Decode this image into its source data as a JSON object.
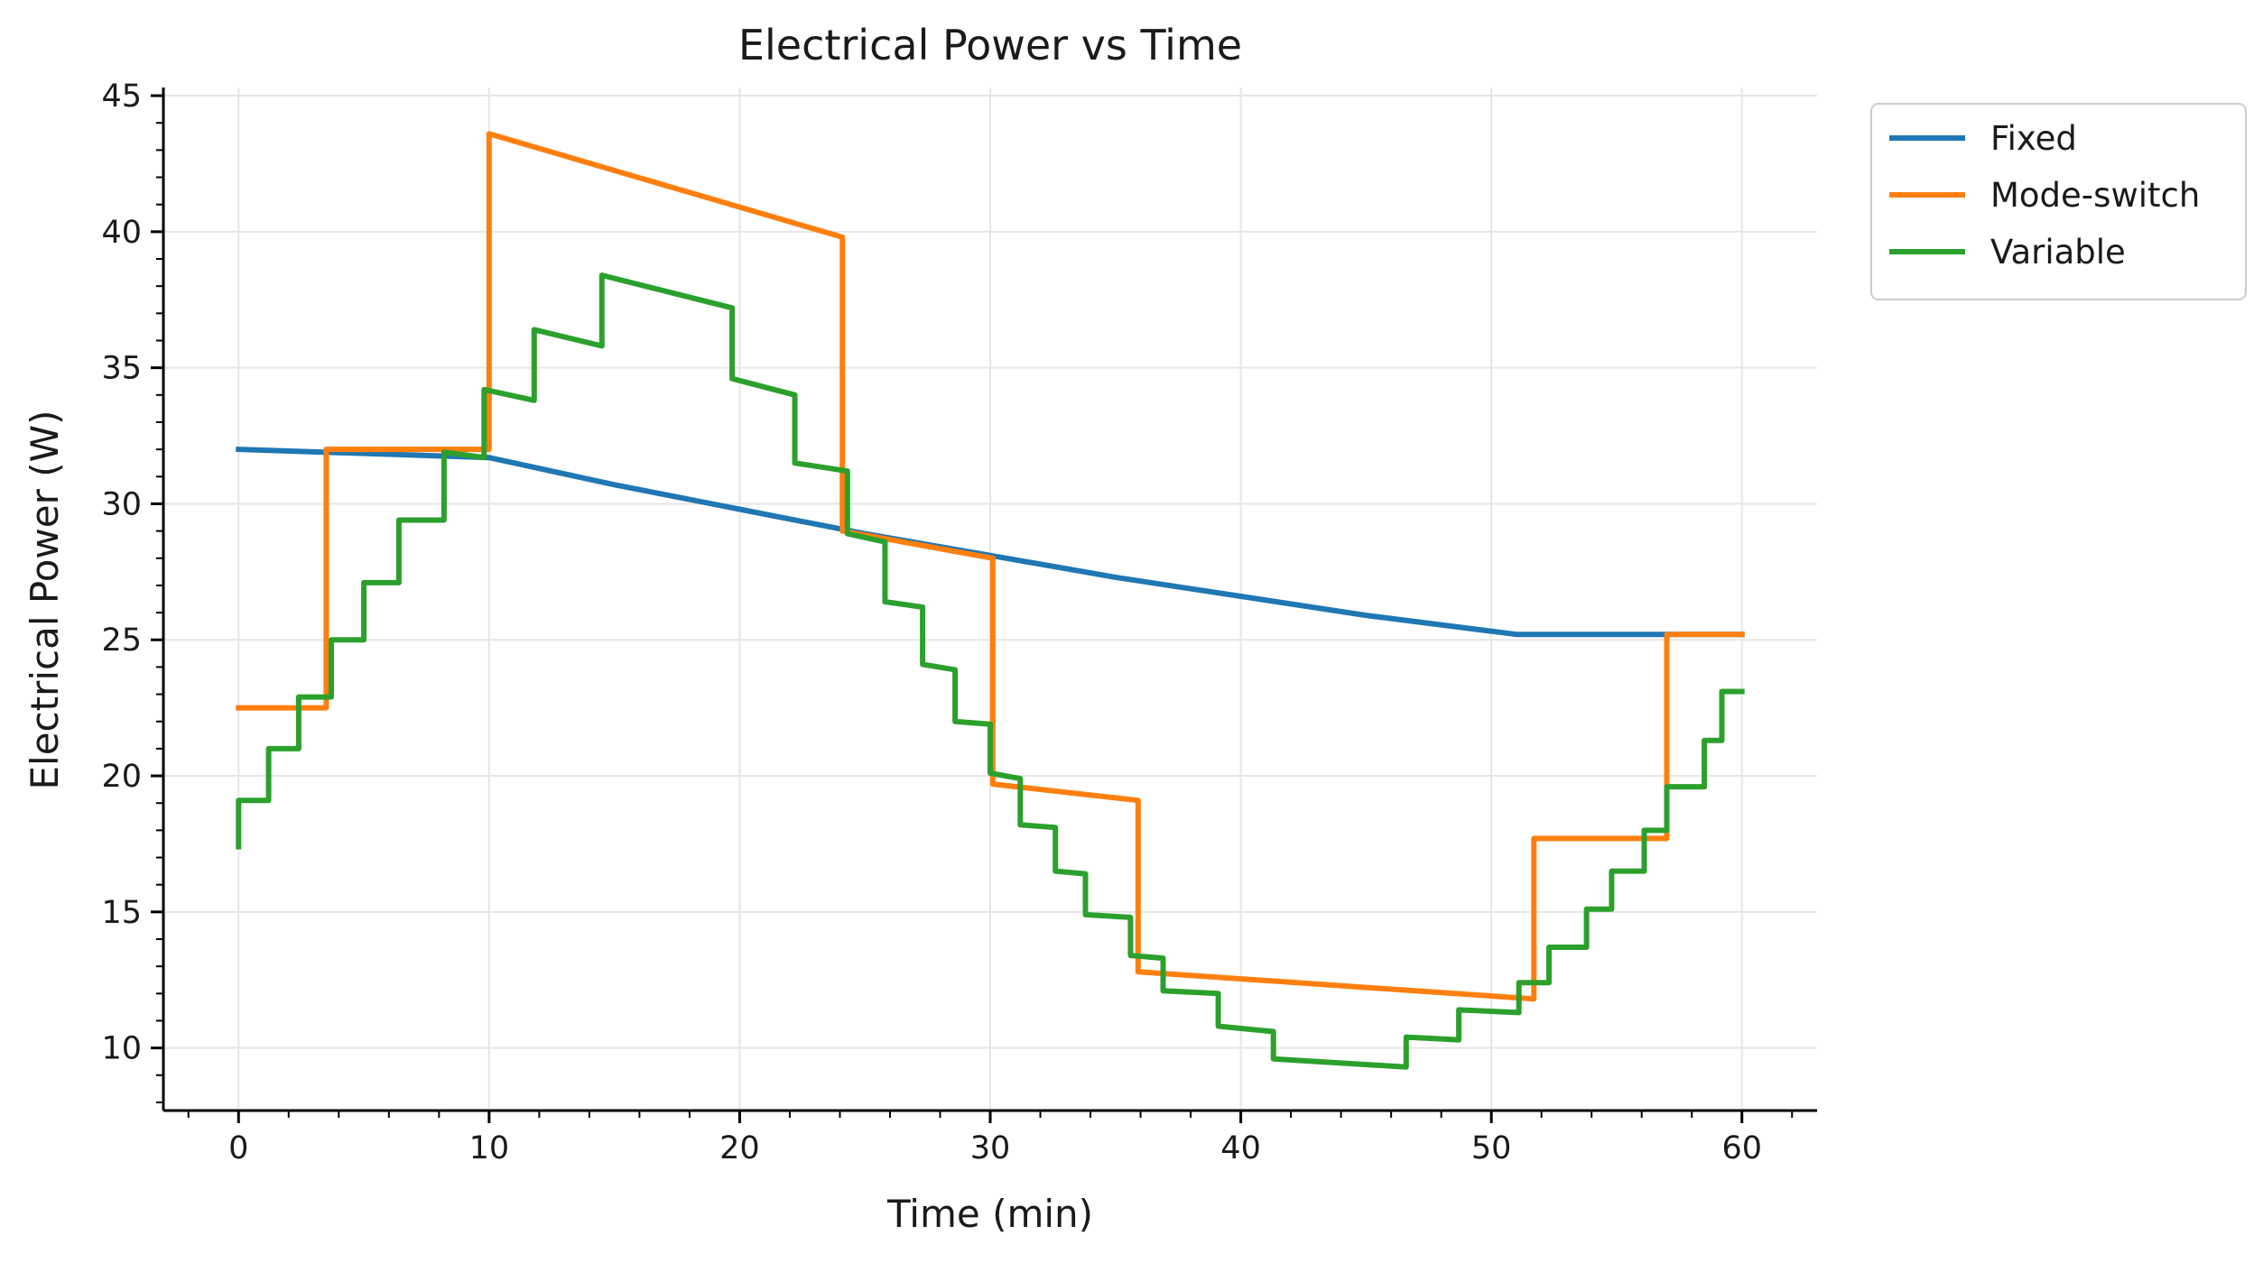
{
  "chart_data": {
    "type": "line",
    "title": "Electrical Power vs Time",
    "xlabel": "Time (min)",
    "ylabel": "Electrical Power (W)",
    "xlim": [
      -3,
      63
    ],
    "ylim": [
      7.7,
      45.3
    ],
    "xticks": [
      0,
      10,
      20,
      30,
      40,
      50,
      60
    ],
    "yticks": [
      10,
      15,
      20,
      25,
      30,
      35,
      40,
      45
    ],
    "x_minor_step": 2,
    "y_minor_step": 1,
    "grid": true,
    "legend_position": "outside-top-right",
    "series": [
      {
        "name": "Fixed",
        "color": "#1f77b4",
        "points": [
          [
            0,
            32.0
          ],
          [
            10,
            31.7
          ],
          [
            15,
            30.7
          ],
          [
            20,
            29.8
          ],
          [
            25,
            28.9
          ],
          [
            30,
            28.1
          ],
          [
            35,
            27.3
          ],
          [
            40,
            26.6
          ],
          [
            45,
            25.9
          ],
          [
            51,
            25.2
          ],
          [
            60,
            25.2
          ]
        ]
      },
      {
        "name": "Mode-switch",
        "color": "#ff7f0e",
        "points": [
          [
            0,
            22.5
          ],
          [
            3.5,
            22.5
          ],
          [
            3.5,
            32.0
          ],
          [
            10,
            32.0
          ],
          [
            10,
            43.6
          ],
          [
            24.1,
            39.8
          ],
          [
            24.1,
            29.0
          ],
          [
            30.1,
            28.0
          ],
          [
            30.1,
            19.7
          ],
          [
            35.9,
            19.1
          ],
          [
            35.9,
            12.8
          ],
          [
            51.7,
            11.8
          ],
          [
            51.7,
            17.7
          ],
          [
            57,
            17.7
          ],
          [
            57,
            25.2
          ],
          [
            60,
            25.2
          ]
        ]
      },
      {
        "name": "Variable",
        "color": "#2ca02c",
        "points": [
          [
            0,
            17.4
          ],
          [
            0,
            19.1
          ],
          [
            1.2,
            19.1
          ],
          [
            1.2,
            21.0
          ],
          [
            2.4,
            21.0
          ],
          [
            2.4,
            22.9
          ],
          [
            3.7,
            22.9
          ],
          [
            3.7,
            25.0
          ],
          [
            5.0,
            25.0
          ],
          [
            5.0,
            27.1
          ],
          [
            6.4,
            27.1
          ],
          [
            6.4,
            29.4
          ],
          [
            8.2,
            29.4
          ],
          [
            8.2,
            31.9
          ],
          [
            9.8,
            31.7
          ],
          [
            9.8,
            34.2
          ],
          [
            11.8,
            33.8
          ],
          [
            11.8,
            36.4
          ],
          [
            14.5,
            35.8
          ],
          [
            14.5,
            38.4
          ],
          [
            19.7,
            37.2
          ],
          [
            19.7,
            34.6
          ],
          [
            22.2,
            34.0
          ],
          [
            22.2,
            31.5
          ],
          [
            24.3,
            31.2
          ],
          [
            24.3,
            28.9
          ],
          [
            25.8,
            28.6
          ],
          [
            25.8,
            26.4
          ],
          [
            27.3,
            26.2
          ],
          [
            27.3,
            24.1
          ],
          [
            28.6,
            23.9
          ],
          [
            28.6,
            22.0
          ],
          [
            30.0,
            21.9
          ],
          [
            30.0,
            20.1
          ],
          [
            31.2,
            19.9
          ],
          [
            31.2,
            18.2
          ],
          [
            32.6,
            18.1
          ],
          [
            32.6,
            16.5
          ],
          [
            33.8,
            16.4
          ],
          [
            33.8,
            14.9
          ],
          [
            35.6,
            14.8
          ],
          [
            35.6,
            13.4
          ],
          [
            36.9,
            13.3
          ],
          [
            36.9,
            12.1
          ],
          [
            39.1,
            12.0
          ],
          [
            39.1,
            10.8
          ],
          [
            41.3,
            10.6
          ],
          [
            41.3,
            9.6
          ],
          [
            46.6,
            9.3
          ],
          [
            46.6,
            10.4
          ],
          [
            48.7,
            10.3
          ],
          [
            48.7,
            11.4
          ],
          [
            51.1,
            11.3
          ],
          [
            51.1,
            12.4
          ],
          [
            52.3,
            12.4
          ],
          [
            52.3,
            13.7
          ],
          [
            53.8,
            13.7
          ],
          [
            53.8,
            15.1
          ],
          [
            54.8,
            15.1
          ],
          [
            54.8,
            16.5
          ],
          [
            56.1,
            16.5
          ],
          [
            56.1,
            18.0
          ],
          [
            57.0,
            18.0
          ],
          [
            57.0,
            19.6
          ],
          [
            58.5,
            19.6
          ],
          [
            58.5,
            21.3
          ],
          [
            59.2,
            21.3
          ],
          [
            59.2,
            23.1
          ],
          [
            60,
            23.1
          ]
        ]
      }
    ]
  }
}
